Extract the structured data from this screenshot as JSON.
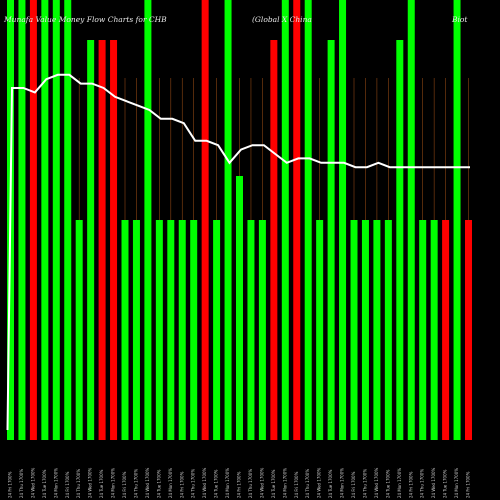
{
  "chart_data": {
    "type": "bar",
    "title_left": "Munafa Value Money Flow  Charts for CHB",
    "title_mid": "(Global X China",
    "title_right": "Biot",
    "colors": {
      "up": "#00ff00",
      "down": "#ff0000",
      "line": "#ffffff",
      "grid": "#8b4513",
      "background": "#000000"
    },
    "ylim": [
      0,
      1
    ],
    "bars": [
      {
        "x": "24 Fri 1700%",
        "dir": "up",
        "level": 1.0,
        "ref": "full"
      },
      {
        "x": "24 Thu 1700%",
        "dir": "up",
        "level": 1.0,
        "ref": "full"
      },
      {
        "x": "24 Wed 1700%",
        "dir": "down",
        "level": 1.0,
        "ref": "full"
      },
      {
        "x": "24 Tue 1700%",
        "dir": "up",
        "level": 1.0,
        "ref": "full"
      },
      {
        "x": "24 Mon 1700%",
        "dir": "up",
        "level": 1.0,
        "ref": "full"
      },
      {
        "x": "24 Fri 1700%",
        "dir": "up",
        "level": 1.0,
        "ref": "full"
      },
      {
        "x": "24 Thu 1700%",
        "dir": "up",
        "level": 0.5,
        "ref": "full"
      },
      {
        "x": "24 Wed 1700%",
        "dir": "up",
        "level": 1.0,
        "ref": "top"
      },
      {
        "x": "24 Tue 1700%",
        "dir": "down",
        "level": 1.0,
        "ref": "top"
      },
      {
        "x": "24 Mon 1700%",
        "dir": "down",
        "level": 1.0,
        "ref": "top"
      },
      {
        "x": "24 Fri 1700%",
        "dir": "up",
        "level": 0.5,
        "ref": "full"
      },
      {
        "x": "24 Thu 1700%",
        "dir": "up",
        "level": 0.5,
        "ref": "full"
      },
      {
        "x": "24 Wed 1700%",
        "dir": "up",
        "level": 1.0,
        "ref": "full"
      },
      {
        "x": "24 Tue 1700%",
        "dir": "up",
        "level": 0.5,
        "ref": "full"
      },
      {
        "x": "24 Mon 1700%",
        "dir": "up",
        "level": 0.5,
        "ref": "full"
      },
      {
        "x": "24 Fri 1700%",
        "dir": "up",
        "level": 0.5,
        "ref": "full"
      },
      {
        "x": "24 Thu 1700%",
        "dir": "up",
        "level": 0.5,
        "ref": "full"
      },
      {
        "x": "24 Wed 1700%",
        "dir": "down",
        "level": 1.0,
        "ref": "full"
      },
      {
        "x": "24 Tue 1700%",
        "dir": "up",
        "level": 0.5,
        "ref": "full"
      },
      {
        "x": "24 Mon 1700%",
        "dir": "up",
        "level": 1.0,
        "ref": "full"
      },
      {
        "x": "24 Fri 1700%",
        "dir": "up",
        "level": 0.6,
        "ref": "full"
      },
      {
        "x": "24 Thu 1700%",
        "dir": "up",
        "level": 0.5,
        "ref": "full"
      },
      {
        "x": "24 Wed 1700%",
        "dir": "up",
        "level": 0.5,
        "ref": "full"
      },
      {
        "x": "24 Tue 1700%",
        "dir": "down",
        "level": 1.0,
        "ref": "top"
      },
      {
        "x": "24 Mon 1700%",
        "dir": "up",
        "level": 1.0,
        "ref": "full"
      },
      {
        "x": "24 Fri 1700%",
        "dir": "down",
        "level": 1.0,
        "ref": "full"
      },
      {
        "x": "24 Thu 1700%",
        "dir": "up",
        "level": 1.0,
        "ref": "full"
      },
      {
        "x": "24 Wed 1700%",
        "dir": "up",
        "level": 0.5,
        "ref": "full"
      },
      {
        "x": "24 Tue 1700%",
        "dir": "up",
        "level": 1.0,
        "ref": "top"
      },
      {
        "x": "24 Mon 1700%",
        "dir": "up",
        "level": 1.0,
        "ref": "full"
      },
      {
        "x": "24 Fri 1700%",
        "dir": "up",
        "level": 0.5,
        "ref": "full"
      },
      {
        "x": "24 Thu 1700%",
        "dir": "up",
        "level": 0.5,
        "ref": "full"
      },
      {
        "x": "24 Wed 1700%",
        "dir": "up",
        "level": 0.5,
        "ref": "full"
      },
      {
        "x": "24 Tue 1700%",
        "dir": "up",
        "level": 0.5,
        "ref": "full"
      },
      {
        "x": "24 Mon 1700%",
        "dir": "up",
        "level": 1.0,
        "ref": "top"
      },
      {
        "x": "24 Fri 1700%",
        "dir": "up",
        "level": 1.0,
        "ref": "full"
      },
      {
        "x": "24 Thu 1700%",
        "dir": "up",
        "level": 0.5,
        "ref": "full"
      },
      {
        "x": "24 Wed 1700%",
        "dir": "up",
        "level": 0.5,
        "ref": "full"
      },
      {
        "x": "24 Tue 1700%",
        "dir": "down",
        "level": 0.5,
        "ref": "full"
      },
      {
        "x": "24 Mon 1700%",
        "dir": "up",
        "level": 1.0,
        "ref": "full"
      },
      {
        "x": "24 Fri 1700%",
        "dir": "down",
        "level": 0.5,
        "ref": "full"
      }
    ],
    "line": [
      0.8,
      0.8,
      0.79,
      0.82,
      0.83,
      0.83,
      0.81,
      0.81,
      0.8,
      0.78,
      0.77,
      0.76,
      0.75,
      0.73,
      0.73,
      0.72,
      0.68,
      0.68,
      0.67,
      0.63,
      0.66,
      0.67,
      0.67,
      0.65,
      0.63,
      0.64,
      0.64,
      0.63,
      0.63,
      0.63,
      0.62,
      0.62,
      0.63,
      0.62,
      0.62,
      0.62,
      0.62,
      0.62,
      0.62,
      0.62,
      0.62
    ],
    "x_labels": [
      "24 Fri 1700%",
      "24 Thu 1700%",
      "24 Wed 1700%",
      "24 Tue 1700%",
      "24 Mon 1700%",
      "24 Fri 1700%",
      "24 Thu 1700%",
      "24 Wed 1700%",
      "24 Tue 1700%",
      "24 Mon 1700%",
      "24 Fri 1700%",
      "24 Thu 1700%",
      "24 Wed 1700%",
      "24 Tue 1700%",
      "24 Mon 1700%",
      "24 Fri 1700%",
      "24 Thu 1700%",
      "24 Wed 1700%",
      "24 Tue 1700%",
      "24 Mon 1700%",
      "24 Fri 1700%",
      "24 Thu 1700%",
      "24 Wed 1700%",
      "24 Tue 1700%",
      "24 Mon 1700%",
      "24 Fri 1700%",
      "24 Thu 1700%",
      "24 Wed 1700%",
      "24 Tue 1700%",
      "24 Mon 1700%",
      "24 Fri 1700%",
      "24 Thu 1700%",
      "24 Wed 1700%",
      "24 Tue 1700%",
      "24 Mon 1700%",
      "24 Fri 1700%",
      "24 Thu 1700%",
      "24 Wed 1700%",
      "24 Tue 1700%",
      "24 Mon 1700%",
      "24 Fri 1700%"
    ],
    "grid": true,
    "legend": "none"
  }
}
